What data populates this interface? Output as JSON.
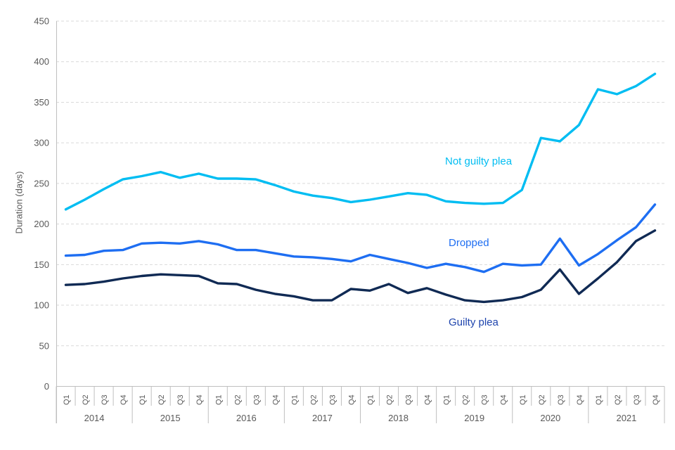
{
  "colors": {
    "background": "#ffffff",
    "gridline": "#d9d9d9",
    "axis_line": "#bfbfbf",
    "tick_text": "#595959"
  },
  "y_axis": {
    "title": "Duration (days)",
    "tick_step": 50
  },
  "x_axis": {
    "years": [
      "2014",
      "2015",
      "2016",
      "2017",
      "2018",
      "2019",
      "2020",
      "2021"
    ],
    "quarters": [
      "Q1",
      "Q2",
      "Q3",
      "Q4"
    ]
  },
  "chart_data": {
    "type": "line",
    "title": "",
    "xlabel": "",
    "ylabel": "Duration (days)",
    "ylim": [
      0,
      450
    ],
    "grid": "horizontal-dashed",
    "legend_position": "inline-annotations",
    "categories": [
      "2014 Q1",
      "2014 Q2",
      "2014 Q3",
      "2014 Q4",
      "2015 Q1",
      "2015 Q2",
      "2015 Q3",
      "2015 Q4",
      "2016 Q1",
      "2016 Q2",
      "2016 Q3",
      "2016 Q4",
      "2017 Q1",
      "2017 Q2",
      "2017 Q3",
      "2017 Q4",
      "2018 Q1",
      "2018 Q2",
      "2018 Q3",
      "2018 Q4",
      "2019 Q1",
      "2019 Q2",
      "2019 Q3",
      "2019 Q4",
      "2020 Q1",
      "2020 Q2",
      "2020 Q3",
      "2020 Q4",
      "2021 Q1",
      "2021 Q2",
      "2021 Q3",
      "2021 Q4"
    ],
    "series": [
      {
        "name": "Not guilty plea",
        "color": "#00bdf2",
        "label_color": "#00bdf2",
        "values": [
          218,
          230,
          243,
          255,
          259,
          264,
          257,
          262,
          256,
          256,
          255,
          248,
          240,
          235,
          232,
          227,
          230,
          234,
          238,
          236,
          228,
          226,
          225,
          226,
          242,
          306,
          302,
          322,
          366,
          360,
          370,
          385
        ]
      },
      {
        "name": "Dropped",
        "color": "#1e6ef2",
        "label_color": "#1e6ef2",
        "values": [
          161,
          162,
          167,
          168,
          176,
          177,
          176,
          179,
          175,
          168,
          168,
          164,
          160,
          159,
          157,
          154,
          162,
          157,
          152,
          146,
          151,
          147,
          141,
          151,
          149,
          150,
          182,
          149,
          163,
          180,
          196,
          224
        ]
      },
      {
        "name": "Guilty plea",
        "color": "#102a54",
        "label_color": "#1e44ad",
        "values": [
          125,
          126,
          129,
          133,
          136,
          138,
          137,
          136,
          127,
          126,
          119,
          114,
          111,
          106,
          106,
          120,
          118,
          126,
          115,
          121,
          113,
          106,
          104,
          106,
          110,
          119,
          144,
          114,
          133,
          153,
          179,
          192
        ]
      }
    ]
  }
}
